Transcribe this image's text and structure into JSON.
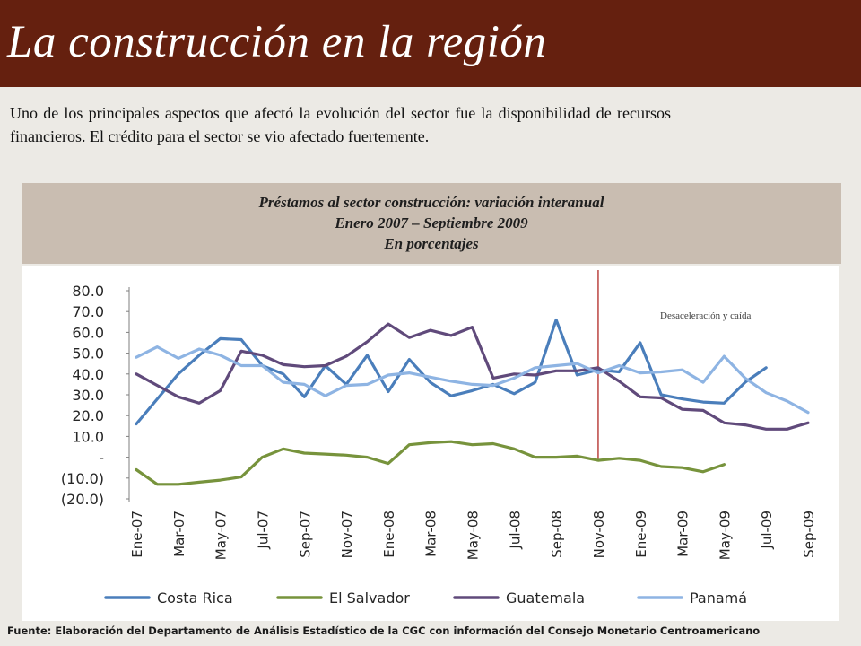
{
  "slide": {
    "title": "La construcción en la región",
    "intro": "Uno de los principales aspectos que afectó la evolución del sector fue la disponibilidad de recursos financieros.  El crédito para el sector se vio afectado fuertemente.",
    "source": "Fuente:  Elaboración del Departamento de Análisis Estadístico de la CGC con información del Consejo Monetario Centroamericano"
  },
  "colors": {
    "title_bar": "#65200F",
    "header_band": "#C9BDB1",
    "background": "#ECEAE5",
    "marker_line": "#C0504D"
  },
  "chart_data": {
    "type": "line",
    "title": "Préstamos al sector construcción: variación interanual",
    "subtitle": "Enero 2007 – Septiembre 2009",
    "units": "En porcentajes",
    "ylim": [
      -20,
      80
    ],
    "y_ticks": [
      {
        "value": 80,
        "label": "80.0"
      },
      {
        "value": 70,
        "label": "70.0"
      },
      {
        "value": 60,
        "label": "60.0"
      },
      {
        "value": 50,
        "label": "50.0"
      },
      {
        "value": 40,
        "label": "40.0"
      },
      {
        "value": 30,
        "label": "30.0"
      },
      {
        "value": 20,
        "label": "20.0"
      },
      {
        "value": 10,
        "label": "10.0"
      },
      {
        "value": 0,
        "label": "-"
      },
      {
        "value": -10,
        "label": "(10.0)"
      },
      {
        "value": -20,
        "label": "(20.0)"
      }
    ],
    "months_count": 33,
    "x_tick_labels": [
      {
        "index": 0,
        "label": "Ene-07"
      },
      {
        "index": 2,
        "label": "Mar-07"
      },
      {
        "index": 4,
        "label": "May-07"
      },
      {
        "index": 6,
        "label": "Jul-07"
      },
      {
        "index": 8,
        "label": "Sep-07"
      },
      {
        "index": 10,
        "label": "Nov-07"
      },
      {
        "index": 12,
        "label": "Ene-08"
      },
      {
        "index": 14,
        "label": "Mar-08"
      },
      {
        "index": 16,
        "label": "May-08"
      },
      {
        "index": 18,
        "label": "Jul-08"
      },
      {
        "index": 20,
        "label": "Sep-08"
      },
      {
        "index": 22,
        "label": "Nov-08"
      },
      {
        "index": 24,
        "label": "Ene-09"
      },
      {
        "index": 26,
        "label": "Mar-09"
      },
      {
        "index": 28,
        "label": "May-09"
      },
      {
        "index": 30,
        "label": "Jul-09"
      },
      {
        "index": 32,
        "label": "Sep-09"
      }
    ],
    "marker": {
      "index": 22,
      "label": "Desaceleración y caída"
    },
    "legend_position": "bottom",
    "grid": false,
    "series": [
      {
        "name": "Costa Rica",
        "color": "#4A7EBB",
        "values": [
          16,
          28,
          40,
          49,
          57,
          56.5,
          44,
          40,
          29,
          44,
          35,
          49,
          31.5,
          47,
          36,
          29.5,
          32,
          35,
          30.5,
          36,
          66,
          39.5,
          42,
          41,
          55,
          30,
          28,
          26.5,
          26,
          36,
          43,
          null,
          null
        ]
      },
      {
        "name": "El Salvador",
        "color": "#77933C",
        "values": [
          -6,
          -13,
          -13,
          -12,
          -11,
          -9.5,
          0,
          4,
          2,
          1.5,
          1,
          0,
          -3,
          6,
          7,
          7.5,
          6,
          6.5,
          4,
          0,
          0,
          0.5,
          -1.5,
          -0.5,
          -1.5,
          -4.5,
          -5,
          -7,
          -3.5,
          null,
          null,
          null,
          null
        ]
      },
      {
        "name": "Guatemala",
        "color": "#604A7B",
        "values": [
          40,
          34.5,
          29,
          26,
          32,
          51,
          49,
          44.5,
          43.5,
          44,
          48.5,
          55.5,
          64,
          57.5,
          61,
          58.5,
          62.5,
          38,
          40,
          39.5,
          41.5,
          41.5,
          43,
          36.5,
          29,
          28.5,
          23,
          22.5,
          16.5,
          15.5,
          13.5,
          13.5,
          16.5
        ]
      },
      {
        "name": "Panamá",
        "color": "#8EB4E3",
        "values": [
          48,
          53,
          47.5,
          52,
          49,
          44,
          44,
          36,
          35,
          29.5,
          34.5,
          35,
          39.5,
          40.5,
          38.5,
          36.5,
          35,
          34.5,
          38,
          43,
          44,
          45,
          40.5,
          44,
          40.5,
          41,
          42,
          36,
          48.5,
          38,
          31,
          27,
          21.5
        ]
      }
    ]
  }
}
